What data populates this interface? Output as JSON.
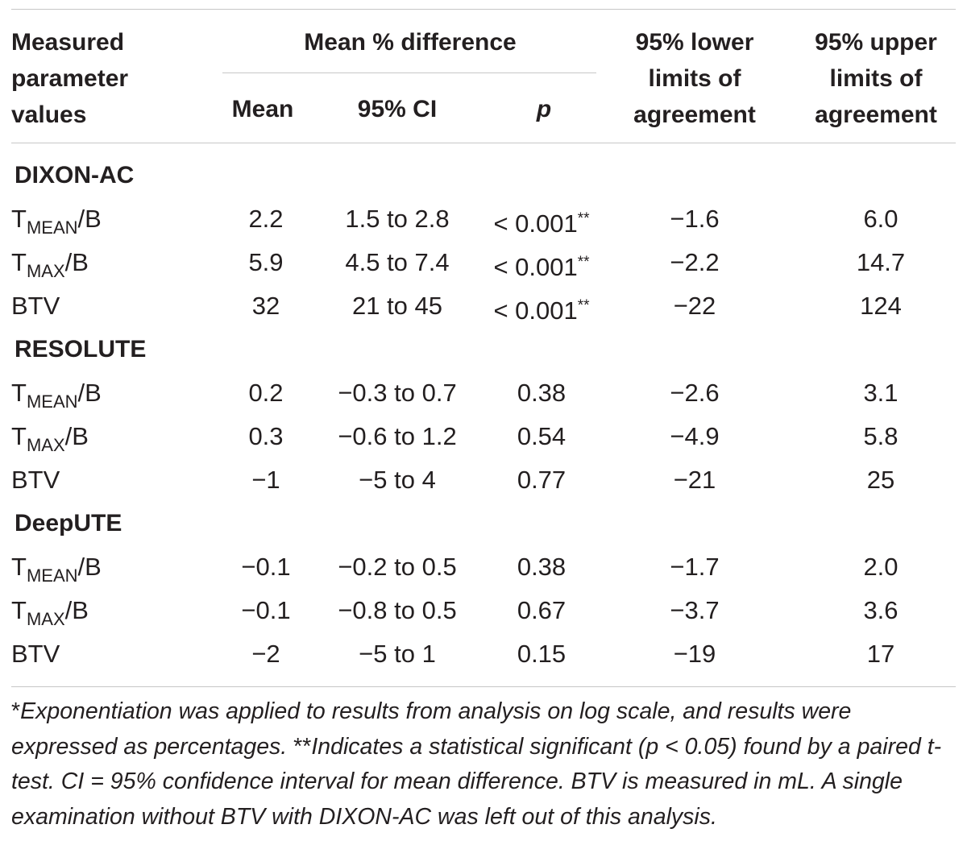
{
  "header": {
    "param_col": [
      "Measured",
      "parameter",
      "values"
    ],
    "group": "Mean % difference",
    "sub_cols": [
      "Mean",
      "95% CI",
      "p"
    ],
    "lower": [
      "95% lower",
      "limits of",
      "agreement"
    ],
    "upper": [
      "95% upper",
      "limits of",
      "agreement"
    ]
  },
  "sections": [
    {
      "name": "DIXON-AC",
      "rows": [
        {
          "p_base": "T",
          "p_sub": "MEAN",
          "p_tail": "/B",
          "mean": "2.2",
          "ci": "1.5 to 2.8",
          "p": "< 0.001",
          "sig": "**",
          "lower": "−1.6",
          "upper": "6.0"
        },
        {
          "p_base": "T",
          "p_sub": "MAX",
          "p_tail": "/B",
          "mean": "5.9",
          "ci": "4.5 to 7.4",
          "p": "< 0.001",
          "sig": "**",
          "lower": "−2.2",
          "upper": "14.7"
        },
        {
          "p_base": "BTV",
          "p_sub": "",
          "p_tail": "",
          "mean": "32",
          "ci": "21 to 45",
          "p": "< 0.001",
          "sig": "**",
          "lower": "−22",
          "upper": "124"
        }
      ]
    },
    {
      "name": "RESOLUTE",
      "rows": [
        {
          "p_base": "T",
          "p_sub": "MEAN",
          "p_tail": "/B",
          "mean": "0.2",
          "ci": "−0.3 to 0.7",
          "p": "0.38",
          "sig": "",
          "lower": "−2.6",
          "upper": "3.1"
        },
        {
          "p_base": "T",
          "p_sub": "MAX",
          "p_tail": "/B",
          "mean": "0.3",
          "ci": "−0.6 to 1.2",
          "p": "0.54",
          "sig": "",
          "lower": "−4.9",
          "upper": "5.8"
        },
        {
          "p_base": "BTV",
          "p_sub": "",
          "p_tail": "",
          "mean": "−1",
          "ci": "−5 to 4",
          "p": "0.77",
          "sig": "",
          "lower": "−21",
          "upper": "25"
        }
      ]
    },
    {
      "name": "DeepUTE",
      "rows": [
        {
          "p_base": "T",
          "p_sub": "MEAN",
          "p_tail": "/B",
          "mean": "−0.1",
          "ci": "−0.2 to 0.5",
          "p": "0.38",
          "sig": "",
          "lower": "−1.7",
          "upper": "2.0"
        },
        {
          "p_base": "T",
          "p_sub": "MAX",
          "p_tail": "/B",
          "mean": "−0.1",
          "ci": "−0.8 to 0.5",
          "p": "0.67",
          "sig": "",
          "lower": "−3.7",
          "upper": "3.6"
        },
        {
          "p_base": "BTV",
          "p_sub": "",
          "p_tail": "",
          "mean": "−2",
          "ci": "−5 to 1",
          "p": "0.15",
          "sig": "",
          "lower": "−19",
          "upper": "17"
        }
      ]
    }
  ],
  "footnote": {
    "star1": "*",
    "text1": "Exponentiation was applied to results from analysis on log scale, and results were expressed as percentages. ",
    "star2": "**",
    "text2": "Indicates a statistical significant (p < 0.05) found by a paired t-test. CI = 95% confidence interval for mean difference. BTV is measured in mL. A single examination without BTV with DIXON-AC was left out of this analysis."
  }
}
